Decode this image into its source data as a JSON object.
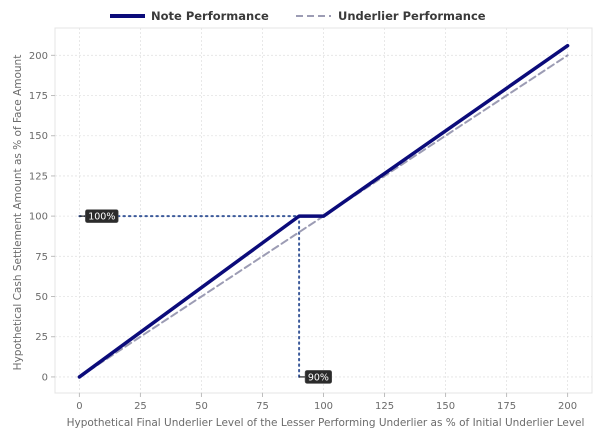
{
  "chart_data": {
    "type": "line",
    "xlabel": "Hypothetical Final Underlier Level of the Lesser Performing Underlier as % of Initial Underlier Level",
    "ylabel": "Hypothetical Cash Settlement Amount as % of Face Amount",
    "xlim": [
      -10,
      210
    ],
    "ylim": [
      -10,
      217
    ],
    "xticks": [
      0,
      25,
      50,
      75,
      100,
      125,
      150,
      175,
      200
    ],
    "yticks": [
      0,
      25,
      50,
      75,
      100,
      125,
      150,
      175,
      200
    ],
    "grid": true,
    "legend_position": "top-center",
    "series": [
      {
        "name": "Note Performance",
        "color": "#0b0b7a",
        "style": "solid",
        "x": [
          0,
          90,
          100,
          200
        ],
        "y": [
          0,
          100,
          100,
          206
        ]
      },
      {
        "name": "Underlier Performance",
        "color": "#9c9cb4",
        "style": "dashed",
        "x": [
          0,
          200
        ],
        "y": [
          0,
          200
        ]
      }
    ],
    "reference_lines": [
      {
        "orientation": "horizontal",
        "from_x": 0,
        "to_x": 90,
        "y": 100,
        "color": "#3c5a9a",
        "style": "dotted"
      },
      {
        "orientation": "vertical",
        "x": 90,
        "from_y": 0,
        "to_y": 100,
        "color": "#3c5a9a",
        "style": "dotted"
      }
    ],
    "annotations": [
      {
        "text": "100%",
        "x": 0,
        "y": 100
      },
      {
        "text": "90%",
        "x": 90,
        "y": 0
      }
    ]
  }
}
